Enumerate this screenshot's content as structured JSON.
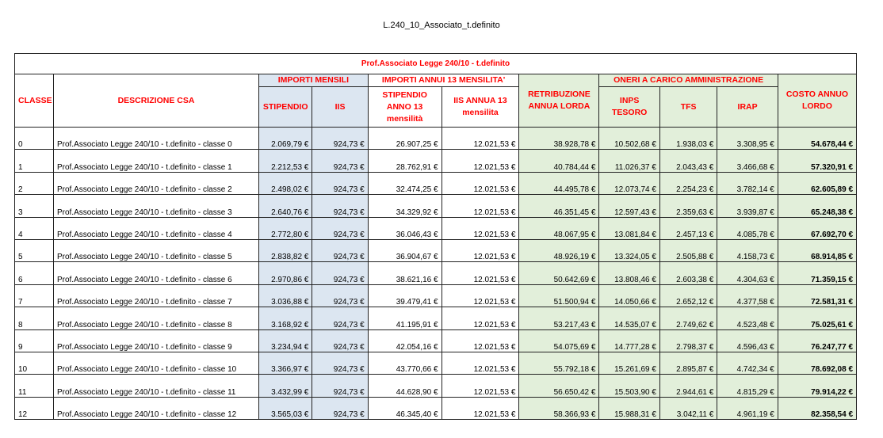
{
  "doc_title": "L.240_10_Associato_t.definito",
  "table": {
    "title": "Prof.Associato Legge 240/10 - t.definito",
    "group_headers": {
      "mensili": "IMPORTI MENSILI",
      "annui": "IMPORTI ANNUI 13 MENSILITA'",
      "oneri": "ONERI A CARICO AMMINISTRAZIONE"
    },
    "columns": {
      "classe": "CLASSE",
      "descrizione": "DESCRIZIONE CSA",
      "stipendio": "STIPENDIO",
      "iis": "IIS",
      "stipendio_annuo": "STIPENDIO ANNO 13 mensilità",
      "iis_annua": "IIS ANNUA 13 mensilita",
      "retribuzione": "RETRIBUZIONE ANNUA LORDA",
      "inps": "INPS TESORO",
      "tfs": "TFS",
      "irap": "IRAP",
      "costo": "COSTO ANNUO LORDO"
    },
    "rows": [
      [
        "0",
        "Prof.Associato Legge 240/10 - t.definito - classe 0",
        "2.069,79 €",
        "924,73 €",
        "26.907,25 €",
        "12.021,53 €",
        "38.928,78 €",
        "10.502,68 €",
        "1.938,03 €",
        "3.308,95 €",
        "54.678,44 €"
      ],
      [
        "1",
        "Prof.Associato Legge 240/10 - t.definito - classe 1",
        "2.212,53 €",
        "924,73 €",
        "28.762,91 €",
        "12.021,53 €",
        "40.784,44 €",
        "11.026,37 €",
        "2.043,43 €",
        "3.466,68 €",
        "57.320,91 €"
      ],
      [
        "2",
        "Prof.Associato Legge 240/10 - t.definito - classe 2",
        "2.498,02 €",
        "924,73 €",
        "32.474,25 €",
        "12.021,53 €",
        "44.495,78 €",
        "12.073,74 €",
        "2.254,23 €",
        "3.782,14 €",
        "62.605,89 €"
      ],
      [
        "3",
        "Prof.Associato Legge 240/10 - t.definito - classe 3",
        "2.640,76 €",
        "924,73 €",
        "34.329,92 €",
        "12.021,53 €",
        "46.351,45 €",
        "12.597,43 €",
        "2.359,63 €",
        "3.939,87 €",
        "65.248,38 €"
      ],
      [
        "4",
        "Prof.Associato Legge 240/10 - t.definito - classe 4",
        "2.772,80 €",
        "924,73 €",
        "36.046,43 €",
        "12.021,53 €",
        "48.067,95 €",
        "13.081,84 €",
        "2.457,13 €",
        "4.085,78 €",
        "67.692,70 €"
      ],
      [
        "5",
        "Prof.Associato Legge 240/10 - t.definito - classe 5",
        "2.838,82 €",
        "924,73 €",
        "36.904,67 €",
        "12.021,53 €",
        "48.926,19 €",
        "13.324,05 €",
        "2.505,88 €",
        "4.158,73 €",
        "68.914,85 €"
      ],
      [
        "6",
        "Prof.Associato Legge 240/10 - t.definito - classe 6",
        "2.970,86 €",
        "924,73 €",
        "38.621,16 €",
        "12.021,53 €",
        "50.642,69 €",
        "13.808,46 €",
        "2.603,38 €",
        "4.304,63 €",
        "71.359,15 €"
      ],
      [
        "7",
        "Prof.Associato Legge 240/10 - t.definito - classe 7",
        "3.036,88 €",
        "924,73 €",
        "39.479,41 €",
        "12.021,53 €",
        "51.500,94 €",
        "14.050,66 €",
        "2.652,12 €",
        "4.377,58 €",
        "72.581,31 €"
      ],
      [
        "8",
        "Prof.Associato Legge 240/10 - t.definito - classe 8",
        "3.168,92 €",
        "924,73 €",
        "41.195,91 €",
        "12.021,53 €",
        "53.217,43 €",
        "14.535,07 €",
        "2.749,62 €",
        "4.523,48 €",
        "75.025,61 €"
      ],
      [
        "9",
        "Prof.Associato Legge 240/10 - t.definito - classe 9",
        "3.234,94 €",
        "924,73 €",
        "42.054,16 €",
        "12.021,53 €",
        "54.075,69 €",
        "14.777,28 €",
        "2.798,37 €",
        "4.596,43 €",
        "76.247,77 €"
      ],
      [
        "10",
        "Prof.Associato Legge 240/10 - t.definito - classe 10",
        "3.366,97 €",
        "924,73 €",
        "43.770,66 €",
        "12.021,53 €",
        "55.792,18 €",
        "15.261,69 €",
        "2.895,87 €",
        "4.742,34 €",
        "78.692,08 €"
      ],
      [
        "11",
        "Prof.Associato Legge 240/10 - t.definito - classe 11",
        "3.432,99 €",
        "924,73 €",
        "44.628,90 €",
        "12.021,53 €",
        "56.650,42 €",
        "15.503,90 €",
        "2.944,61 €",
        "4.815,29 €",
        "79.914,22 €"
      ],
      [
        "12",
        "Prof.Associato Legge 240/10 - t.definito - classe 12",
        "3.565,03 €",
        "924,73 €",
        "46.345,40 €",
        "12.021,53 €",
        "58.366,93 €",
        "15.988,31 €",
        "3.042,11 €",
        "4.961,19 €",
        "82.358,54 €"
      ]
    ]
  }
}
